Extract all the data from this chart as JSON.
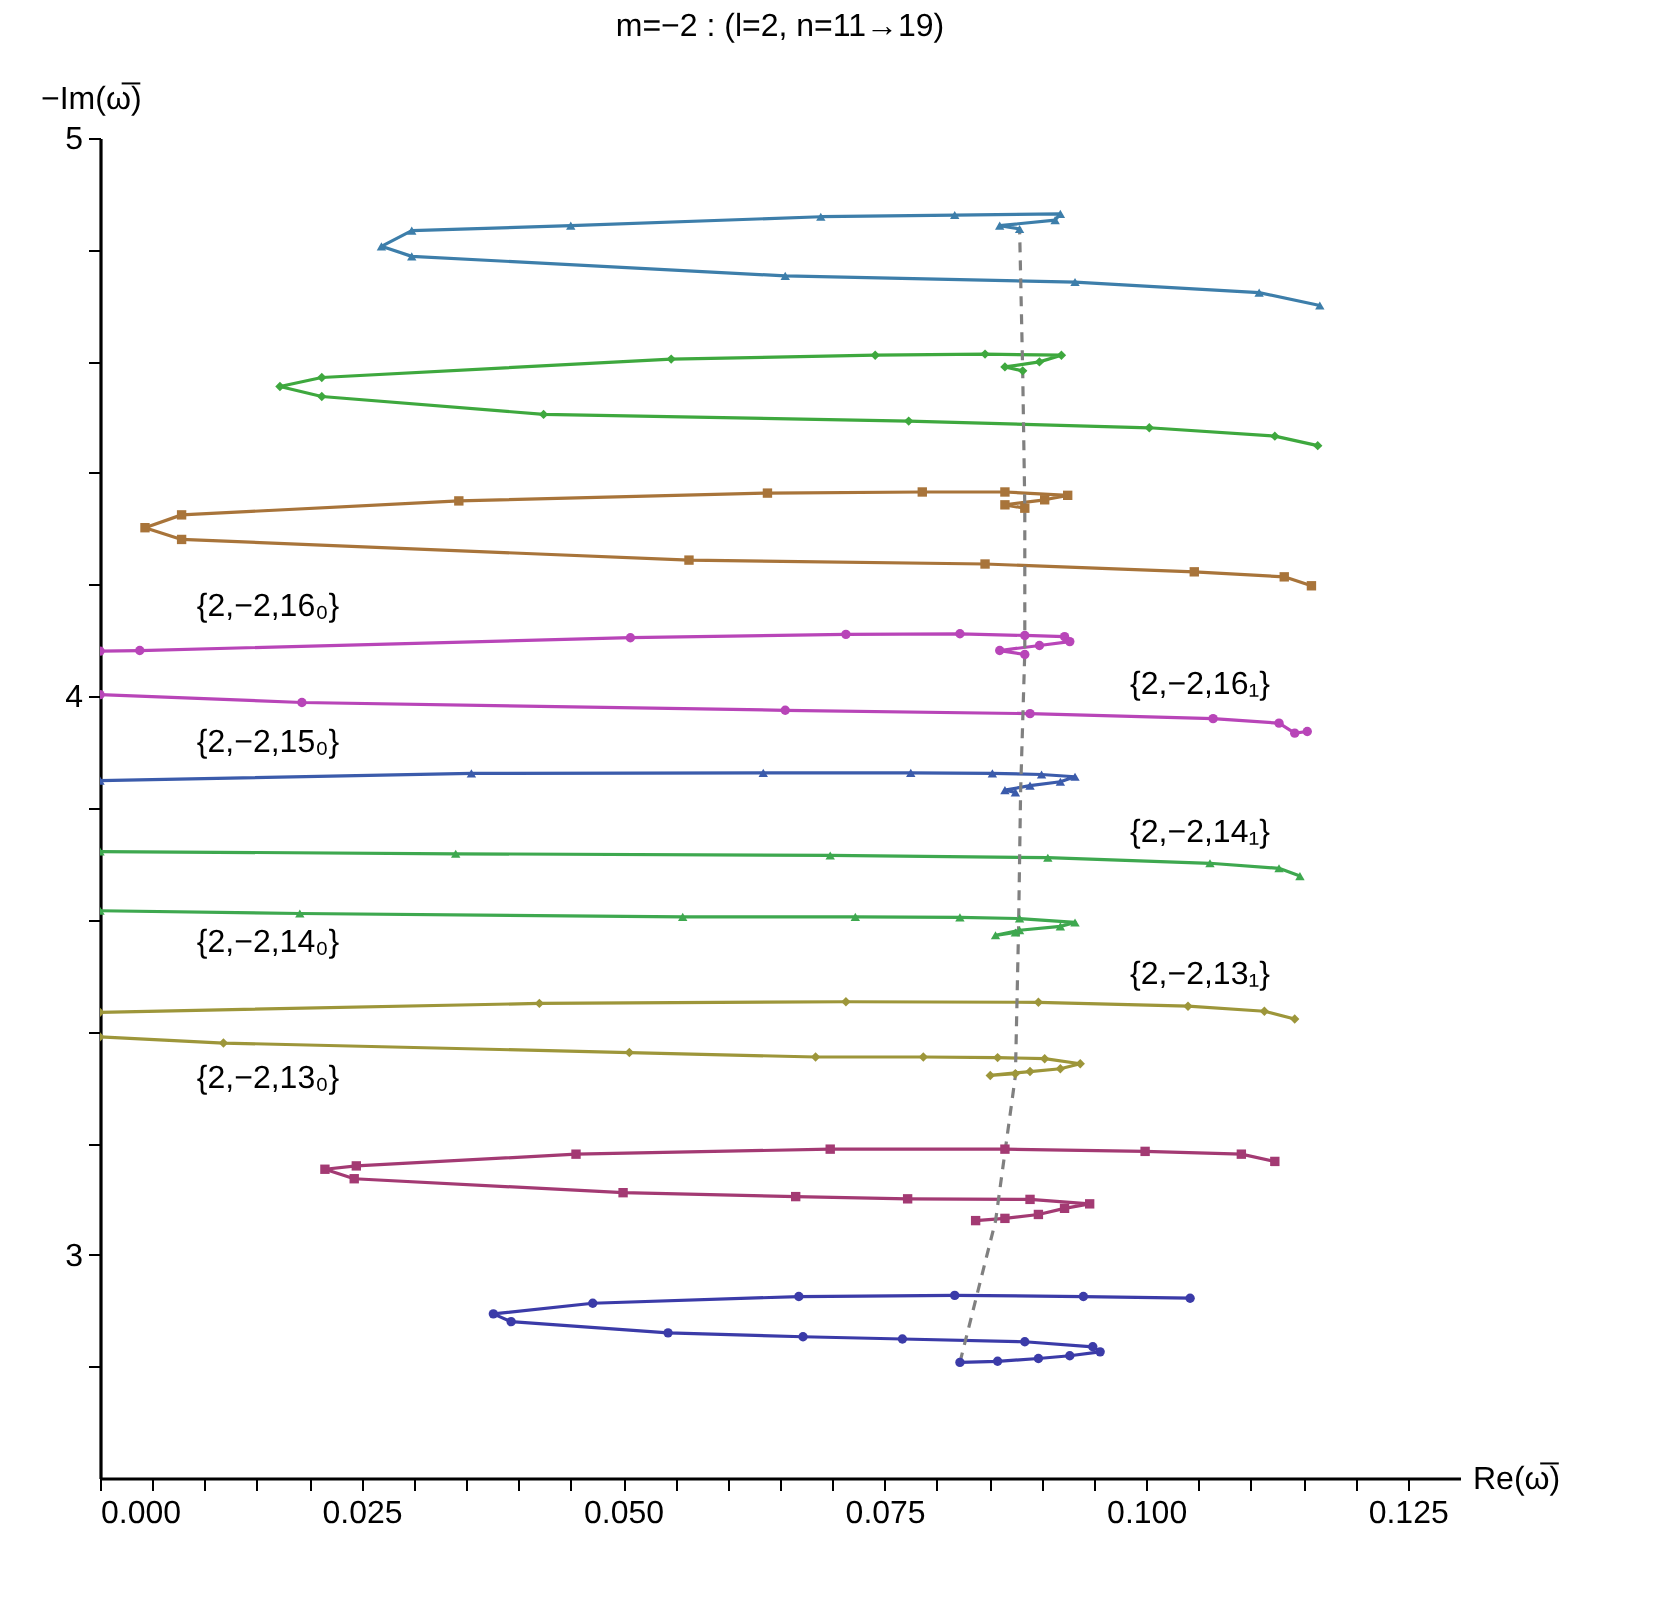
{
  "chart_data": {
    "type": "line",
    "title": "m=−2 : (l=2, n=11→19)",
    "xlabel": "Re(ω̅)",
    "ylabel": "−Im(ω̅)",
    "xlim": [
      0,
      0.13
    ],
    "ylim": [
      2.6,
      5
    ],
    "xticks": [
      {
        "value": 0,
        "label": "0.000"
      },
      {
        "value": 0.005,
        "label": null
      },
      {
        "value": 0.01,
        "label": null
      },
      {
        "value": 0.015,
        "label": null
      },
      {
        "value": 0.02,
        "label": null
      },
      {
        "value": 0.025,
        "label": "0.025"
      },
      {
        "value": 0.03,
        "label": null
      },
      {
        "value": 0.035,
        "label": null
      },
      {
        "value": 0.04,
        "label": null
      },
      {
        "value": 0.045,
        "label": null
      },
      {
        "value": 0.05,
        "label": "0.050"
      },
      {
        "value": 0.055,
        "label": null
      },
      {
        "value": 0.06,
        "label": null
      },
      {
        "value": 0.065,
        "label": null
      },
      {
        "value": 0.07,
        "label": null
      },
      {
        "value": 0.075,
        "label": "0.075"
      },
      {
        "value": 0.08,
        "label": null
      },
      {
        "value": 0.085,
        "label": null
      },
      {
        "value": 0.09,
        "label": null
      },
      {
        "value": 0.095,
        "label": null
      },
      {
        "value": 0.1,
        "label": "0.100"
      },
      {
        "value": 0.105,
        "label": null
      },
      {
        "value": 0.11,
        "label": null
      },
      {
        "value": 0.115,
        "label": null
      },
      {
        "value": 0.12,
        "label": null
      },
      {
        "value": 0.125,
        "label": "0.125"
      }
    ],
    "yticks": [
      {
        "value": 2.8,
        "label": null
      },
      3,
      {
        "value": 3.2,
        "label": null
      },
      {
        "value": 3.4,
        "label": null
      },
      {
        "value": 3.6,
        "label": null
      },
      {
        "value": 3.8,
        "label": null
      },
      4,
      {
        "value": 4.2,
        "label": null
      },
      {
        "value": 4.4,
        "label": null
      },
      {
        "value": 4.6,
        "label": null
      },
      {
        "value": 4.8,
        "label": null
      },
      5
    ],
    "grid": false,
    "series": [
      {
        "color": "#3d7eaa",
        "marker": "triangle",
        "x": [
          0.1166,
          0.1108,
          0.0932,
          0.0655,
          0.0298,
          0.0269,
          0.0298,
          0.045,
          0.0689,
          0.0817,
          0.0918,
          0.0913,
          0.086,
          0.0879
        ],
        "values": [
          4.7,
          4.723,
          4.742,
          4.753,
          4.788,
          4.806,
          4.834,
          4.843,
          4.859,
          4.862,
          4.864,
          4.853,
          4.843,
          4.837
        ]
      },
      {
        "color": "#3ea83e",
        "marker": "diamond",
        "x": [
          0.1164,
          0.1123,
          0.1003,
          0.0773,
          0.0424,
          0.0212,
          0.0172,
          0.0212,
          0.0546,
          0.0741,
          0.0846,
          0.0919,
          0.0898,
          0.0865,
          0.0882
        ],
        "values": [
          4.449,
          4.466,
          4.481,
          4.493,
          4.505,
          4.537,
          4.555,
          4.571,
          4.604,
          4.611,
          4.613,
          4.611,
          4.599,
          4.59,
          4.583
        ]
      },
      {
        "color": "#a8743a",
        "marker": "square",
        "x": [
          0.1158,
          0.1132,
          0.1046,
          0.0846,
          0.0563,
          0.0078,
          0.0043,
          0.0078,
          0.0343,
          0.0638,
          0.0786,
          0.0865,
          0.0925,
          0.0903,
          0.0865,
          0.0884
        ],
        "values": [
          4.198,
          4.214,
          4.223,
          4.237,
          4.244,
          4.281,
          4.302,
          4.325,
          4.35,
          4.364,
          4.366,
          4.366,
          4.36,
          4.352,
          4.343,
          4.337
        ]
      },
      {
        "color": "#b845b8",
        "marker": "circle",
        "x": [
          0.1154,
          0.1142,
          0.1127,
          0.1064,
          0.0889,
          0.0655,
          0.0193,
          0,
          null,
          0,
          0.0038,
          0.0507,
          0.0713,
          0.0822,
          0.0884,
          0.0922,
          0.0927,
          0.0898,
          0.086,
          0.0884
        ],
        "values": [
          3.937,
          3.934,
          3.952,
          3.96,
          3.969,
          3.975,
          3.989,
          4.003,
          null,
          4.081,
          4.082,
          4.105,
          4.111,
          4.112,
          4.109,
          4.107,
          4.098,
          4.091,
          4.082,
          4.075
        ]
      },
      {
        "color": "#3b5bab",
        "marker": "triangle",
        "x": [
          0,
          0.0355,
          0.0634,
          0.0775,
          0.0853,
          0.09,
          0.0932,
          0.0918,
          0.0889,
          0.0865,
          0.0875
        ],
        "values": [
          3.849,
          3.862,
          3.863,
          3.863,
          3.862,
          3.86,
          3.856,
          3.847,
          3.84,
          3.832,
          3.828
        ]
      },
      {
        "color": "#3ea84f",
        "marker": "triangle",
        "x": [
          0,
          0.034,
          0.0698,
          0.0906,
          0.1061,
          0.1127,
          0.1147,
          null,
          0,
          0.0191,
          0.0557,
          0.0722,
          0.0822,
          0.0879,
          0.0932,
          0.0918,
          0.0879,
          0.0856,
          0.0875
        ],
        "values": [
          3.722,
          3.718,
          3.715,
          3.711,
          3.701,
          3.692,
          3.678,
          null,
          3.616,
          3.611,
          3.605,
          3.605,
          3.604,
          3.602,
          3.595,
          3.588,
          3.581,
          3.572,
          3.577
        ]
      },
      {
        "color": "#9d963a",
        "marker": "diamond",
        "x": [
          0,
          0.042,
          0.0713,
          0.0897,
          0.104,
          0.1113,
          0.1142,
          null,
          0,
          0.0118,
          0.0506,
          0.0684,
          0.0787,
          0.0858,
          0.0903,
          0.0937,
          0.0918,
          0.0889,
          0.0851,
          0.0875
        ],
        "values": [
          3.434,
          3.45,
          3.453,
          3.452,
          3.445,
          3.436,
          3.422,
          null,
          3.39,
          3.379,
          3.362,
          3.354,
          3.354,
          3.353,
          3.351,
          3.342,
          3.333,
          3.328,
          3.321,
          3.324
        ]
      },
      {
        "color": "#a33a73",
        "marker": "square",
        "x": [
          0.1123,
          0.1091,
          0.0999,
          0.0865,
          0.0698,
          0.0455,
          0.0245,
          0.0215,
          0.0243,
          0.05,
          0.0665,
          0.0772,
          0.0889,
          0.0946,
          0.0922,
          0.0897,
          0.0865,
          0.0837
        ],
        "values": [
          3.167,
          3.18,
          3.185,
          3.189,
          3.189,
          3.18,
          3.159,
          3.153,
          3.136,
          3.111,
          3.104,
          3.1,
          3.099,
          3.091,
          3.083,
          3.072,
          3.065,
          3.061
        ]
      },
      {
        "color": "#3b3ba8",
        "marker": "circle",
        "x": [
          0.1042,
          0.094,
          0.0817,
          0.0668,
          0.0471,
          0.0376,
          0.0393,
          0.0543,
          0.0672,
          0.0767,
          0.0884,
          0.0949,
          0.0956,
          0.0927,
          0.0897,
          0.0858,
          0.0822
        ],
        "values": [
          2.922,
          2.925,
          2.927,
          2.925,
          2.913,
          2.894,
          2.88,
          2.86,
          2.853,
          2.849,
          2.844,
          2.835,
          2.826,
          2.819,
          2.814,
          2.809,
          2.807
        ]
      },
      {
        "color": "#808080",
        "marker": "none",
        "line_style": "dashed",
        "x": [
          0.0822,
          0.0856,
          0.0875,
          0.0878,
          0.088,
          0.0884,
          0.0884,
          0.0882,
          0.0879
        ],
        "values": [
          2.807,
          3.06,
          3.32,
          3.58,
          3.83,
          4.08,
          4.34,
          4.58,
          4.84
        ]
      }
    ],
    "annotations": [
      "{2,−2,16₀}",
      "{2,−2,16₁}",
      "{2,−2,15₀}",
      "{2,−2,14₁}",
      "{2,−2,14₀}",
      "{2,−2,13₁}",
      "{2,−2,13₀}"
    ]
  }
}
